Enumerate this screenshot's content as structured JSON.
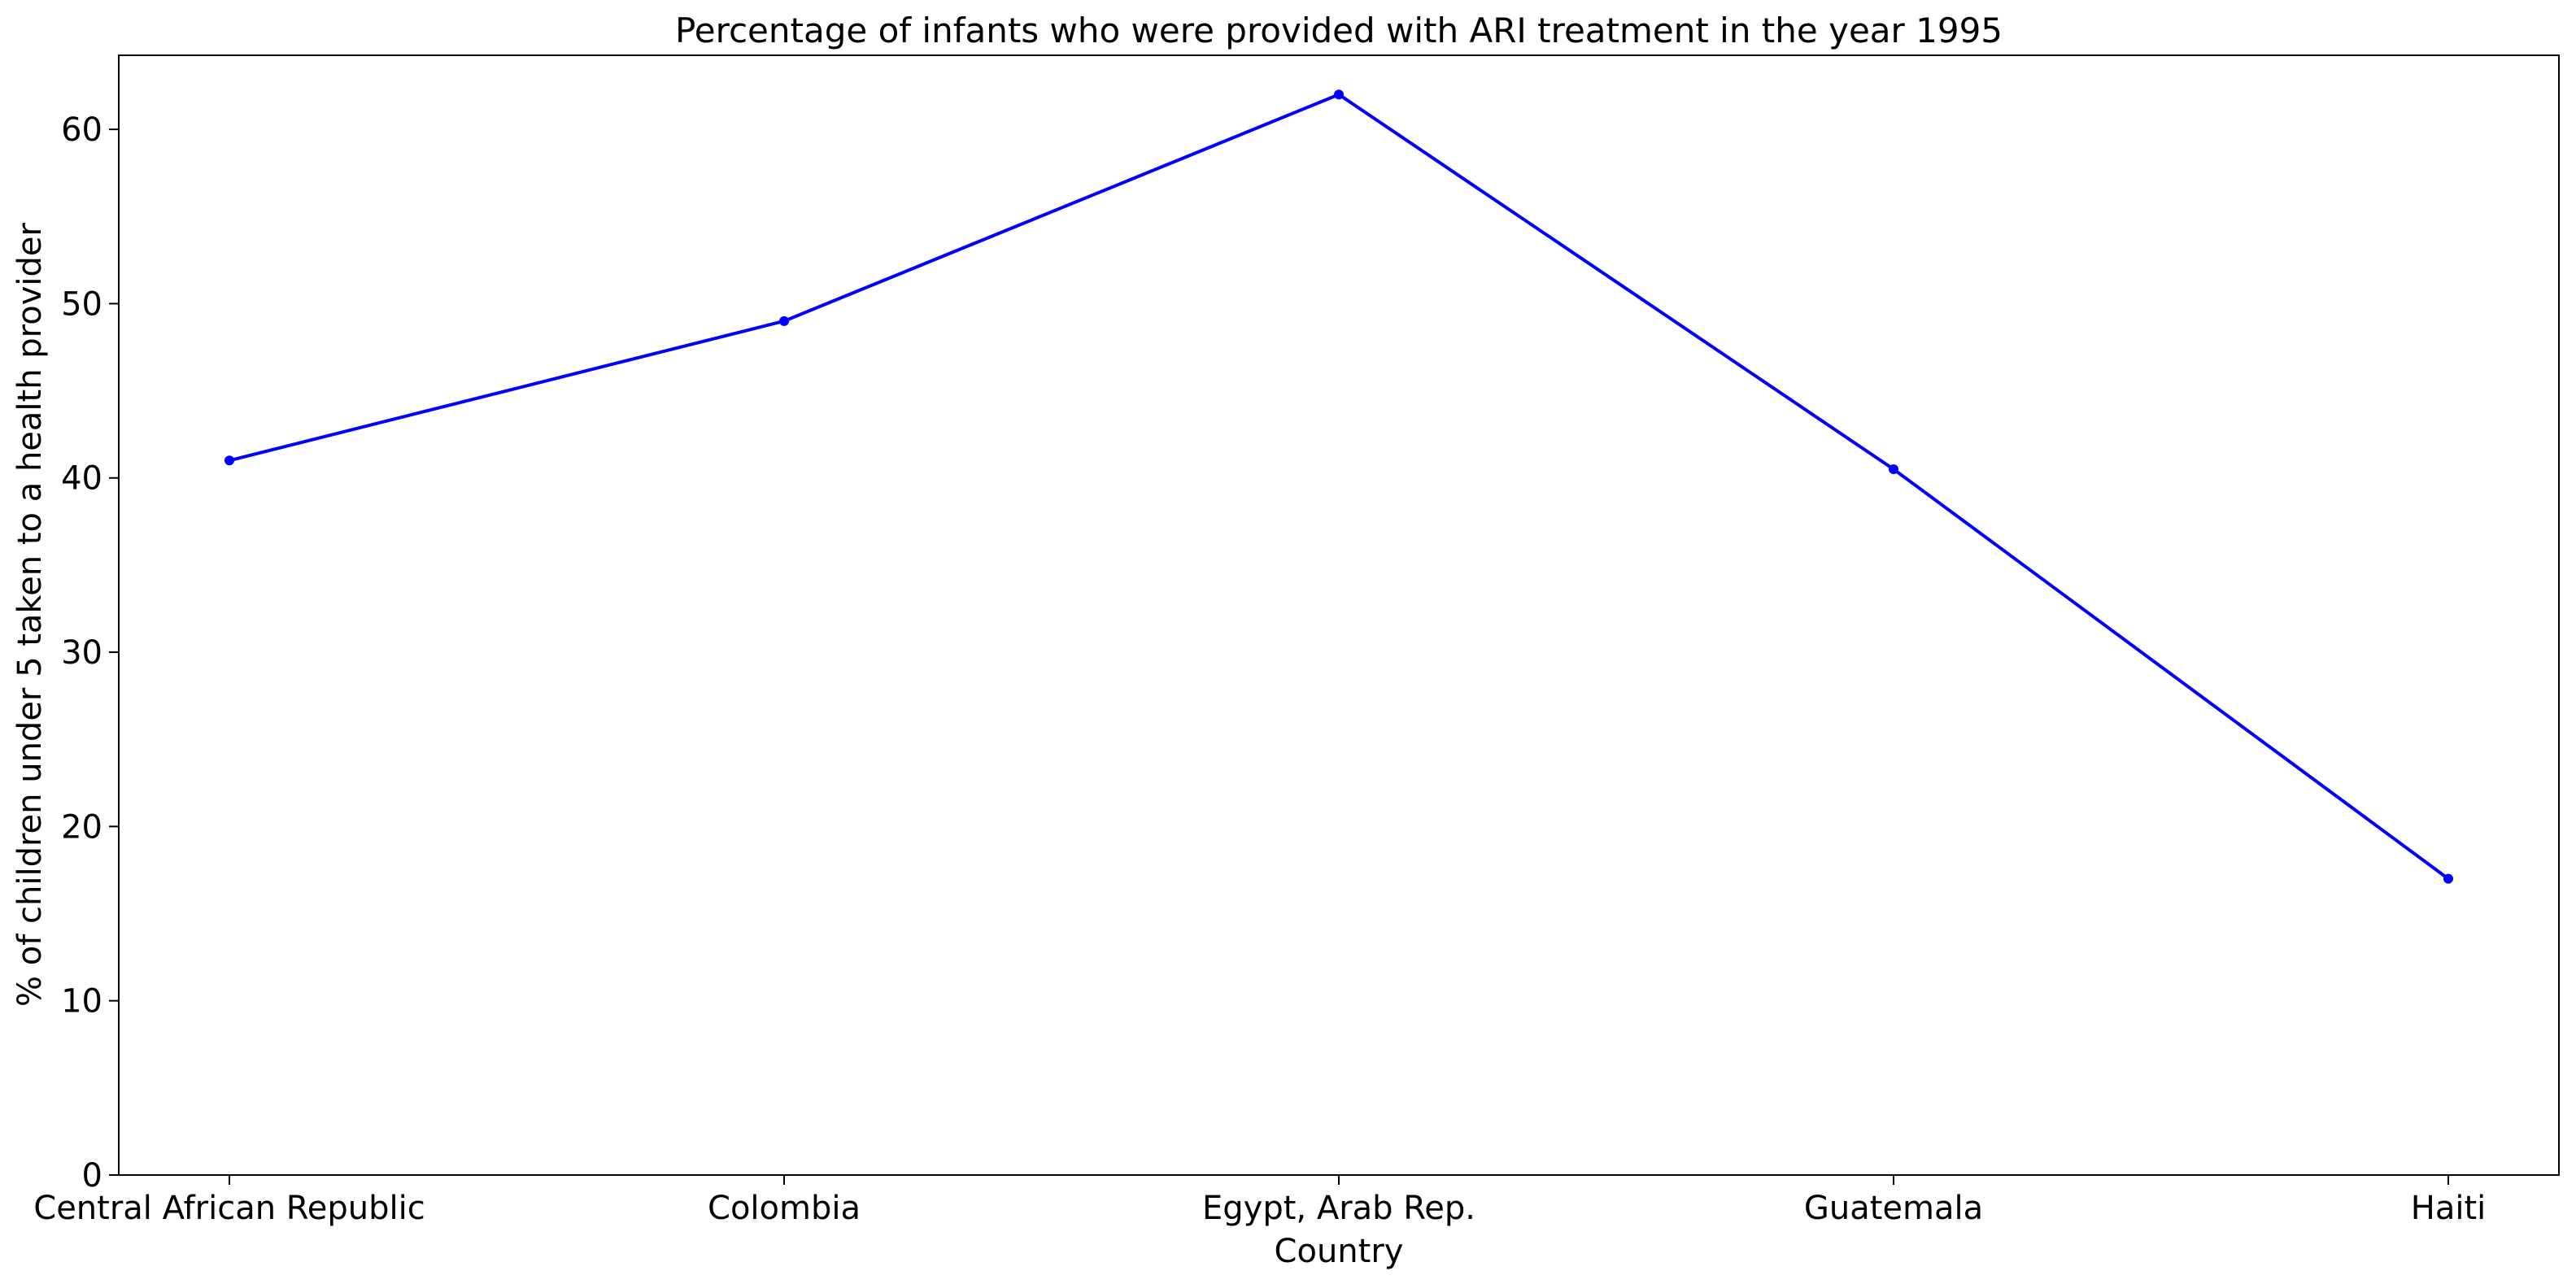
{
  "chart_data": {
    "type": "line",
    "title": "Percentage of infants who were provided with ARI treatment in the year 1995",
    "xlabel": "Country",
    "ylabel": "% of children under 5 taken to a health provider",
    "categories": [
      "Central African Republic",
      "Colombia",
      "Egypt, Arab Rep.",
      "Guatemala",
      "Haiti"
    ],
    "series": [
      {
        "values": [
          41.0,
          49.0,
          62.0,
          40.5,
          17.0
        ],
        "color": "#0000ff"
      }
    ],
    "ylim": [
      0,
      64.25
    ],
    "yticks": [
      0,
      10,
      20,
      30,
      40,
      50,
      60
    ],
    "grid": false,
    "legend": "none"
  }
}
